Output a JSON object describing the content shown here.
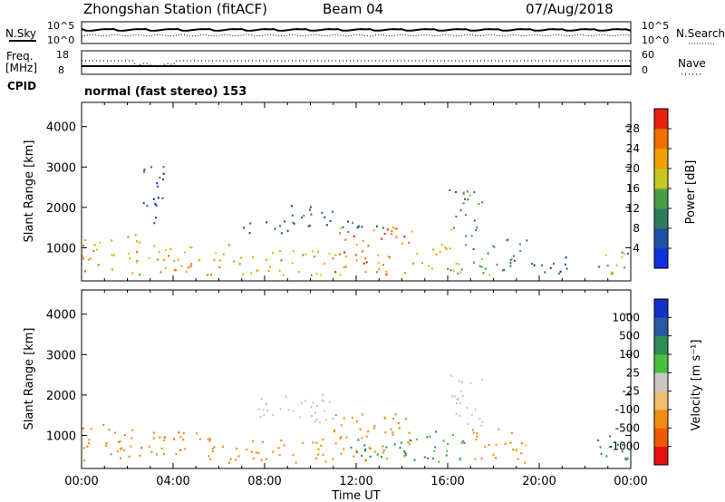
{
  "header": {
    "station": "Zhongshan Station (fitACF)",
    "beam": "Beam 04",
    "date": "07/Aug/2018"
  },
  "status_panels": {
    "nsky_label": "N.Sky",
    "nsky_ticks": [
      "10^5",
      "10^0"
    ],
    "nsearch_label": "N.Search",
    "nsearch_ticks": [
      "10^5",
      "10^0"
    ],
    "freq_label_line1": "Freq.",
    "freq_label_line2": "[MHz]",
    "freq_ticks": [
      "18",
      "8"
    ],
    "nave_label": "Nave",
    "nave_ticks": [
      "60",
      "0"
    ],
    "cpid_label": "CPID",
    "cpid_text": "normal (fast stereo) 153"
  },
  "colors": {
    "power": [
      "#1030e0",
      "#2050a8",
      "#2e7d5a",
      "#4a9e4a",
      "#c8c820",
      "#f0a000",
      "#f07000",
      "#e82010"
    ],
    "velocity": [
      "#e81010",
      "#f05a00",
      "#f08c10",
      "#f2be70",
      "#c8c8c0",
      "#48c040",
      "#2e8c5a",
      "#2a5aa0",
      "#1030c8"
    ]
  },
  "chart_data": [
    {
      "type": "heatmap",
      "name": "power",
      "x_ticks": [
        "00:00",
        "04:00",
        "08:00",
        "12:00",
        "16:00",
        "20:00",
        "00:00"
      ],
      "xlabel": "Time UT",
      "ylabel": "Slant Range [km]",
      "y_ticks": [
        "1000",
        "2000",
        "3000",
        "4000"
      ],
      "ylim": [
        180,
        4600
      ],
      "xlim": [
        0,
        24
      ],
      "colorbar_label": "Power [dB]",
      "colorbar_ticks": [
        "4",
        "8",
        "12",
        "16",
        "20",
        "24",
        "28"
      ],
      "colorbar_range": [
        0,
        32
      ],
      "regions": [
        {
          "t0": 0.0,
          "t1": 2.5,
          "r0": 350,
          "r1": 1300,
          "v": 22
        },
        {
          "t0": 2.5,
          "t1": 6.5,
          "r0": 300,
          "r1": 1050,
          "v": 21
        },
        {
          "t0": 6.5,
          "t1": 11.0,
          "r0": 300,
          "r1": 900,
          "v": 19
        },
        {
          "t0": 7.0,
          "t1": 10.0,
          "r0": 1300,
          "r1": 1650,
          "v": 9
        },
        {
          "t0": 9.0,
          "t1": 11.0,
          "r0": 1500,
          "r1": 2100,
          "v": 8
        },
        {
          "t0": 11.0,
          "t1": 14.5,
          "r0": 300,
          "r1": 1500,
          "v": 24
        },
        {
          "t0": 11.2,
          "t1": 13.4,
          "r0": 1300,
          "r1": 1700,
          "v": 10
        },
        {
          "t0": 14.5,
          "t1": 16.8,
          "r0": 300,
          "r1": 1100,
          "v": 18
        },
        {
          "t0": 16.0,
          "t1": 17.5,
          "r0": 1200,
          "r1": 2500,
          "v": 12
        },
        {
          "t0": 17.0,
          "t1": 19.5,
          "r0": 300,
          "r1": 1200,
          "v": 13
        },
        {
          "t0": 19.5,
          "t1": 21.5,
          "r0": 300,
          "r1": 800,
          "v": 7
        },
        {
          "t0": 22.5,
          "t1": 24.0,
          "r0": 300,
          "r1": 1000,
          "v": 16
        },
        {
          "t0": 2.5,
          "t1": 3.6,
          "r0": 1500,
          "r1": 3000,
          "v": 6
        }
      ]
    },
    {
      "type": "heatmap",
      "name": "velocity",
      "x_ticks": [
        "00:00",
        "04:00",
        "08:00",
        "12:00",
        "16:00",
        "20:00",
        "00:00"
      ],
      "xlabel": "Time UT",
      "ylabel": "Slant Range [km]",
      "y_ticks": [
        "1000",
        "2000",
        "3000",
        "4000"
      ],
      "ylim": [
        180,
        4600
      ],
      "xlim": [
        0,
        24
      ],
      "colorbar_label": "Velocity [m s⁻¹]",
      "colorbar_ticks": [
        "-1000",
        "-500",
        "-100",
        "-25",
        "25",
        "100",
        "500",
        "1000"
      ],
      "regions": [
        {
          "t0": 0.0,
          "t1": 2.5,
          "r0": 350,
          "r1": 1300,
          "v": -300
        },
        {
          "t0": 2.5,
          "t1": 6.5,
          "r0": 300,
          "r1": 1050,
          "v": -400
        },
        {
          "t0": 6.5,
          "t1": 11.0,
          "r0": 300,
          "r1": 900,
          "v": -200
        },
        {
          "t0": 7.0,
          "t1": 11.0,
          "r0": 1300,
          "r1": 2000,
          "v": 0
        },
        {
          "t0": 11.0,
          "t1": 14.5,
          "r0": 300,
          "r1": 1500,
          "v": -250
        },
        {
          "t0": 11.5,
          "t1": 15.0,
          "r0": 400,
          "r1": 900,
          "v": 150
        },
        {
          "t0": 14.5,
          "t1": 16.8,
          "r0": 300,
          "r1": 1100,
          "v": 120
        },
        {
          "t0": 16.0,
          "t1": 17.5,
          "r0": 1200,
          "r1": 2500,
          "v": 0
        },
        {
          "t0": 17.0,
          "t1": 19.5,
          "r0": 300,
          "r1": 1200,
          "v": -150
        },
        {
          "t0": 22.5,
          "t1": 24.0,
          "r0": 300,
          "r1": 1000,
          "v": 200
        }
      ]
    }
  ]
}
